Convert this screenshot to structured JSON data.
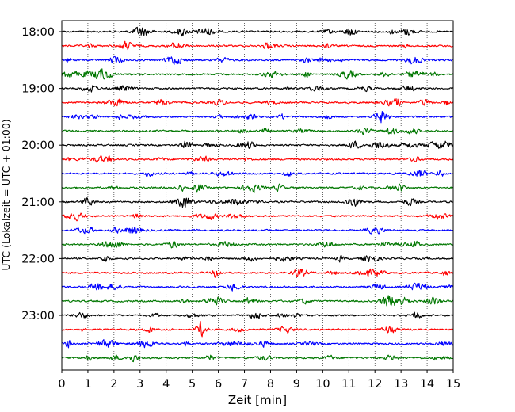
{
  "chart_data": {
    "type": "line",
    "title": "",
    "xlabel": "Zeit  [min]",
    "ylabel": "UTC (Lokalzeit = UTC + 01:00)",
    "xlim": [
      0,
      15
    ],
    "x_ticks": [
      "0",
      "1",
      "2",
      "3",
      "4",
      "5",
      "6",
      "7",
      "8",
      "9",
      "10",
      "11",
      "12",
      "13",
      "14",
      "15"
    ],
    "y_tick_labels": [
      "18:00",
      "19:00",
      "20:00",
      "21:00",
      "22:00",
      "23:00"
    ],
    "trace_start_time": "18:00",
    "trace_duration_min": 15,
    "trace_count": 24,
    "trace_colors": [
      "#000000",
      "#ff0000",
      "#0000ff",
      "#007700"
    ],
    "vertical_grid": "dotted",
    "legend": "none"
  }
}
